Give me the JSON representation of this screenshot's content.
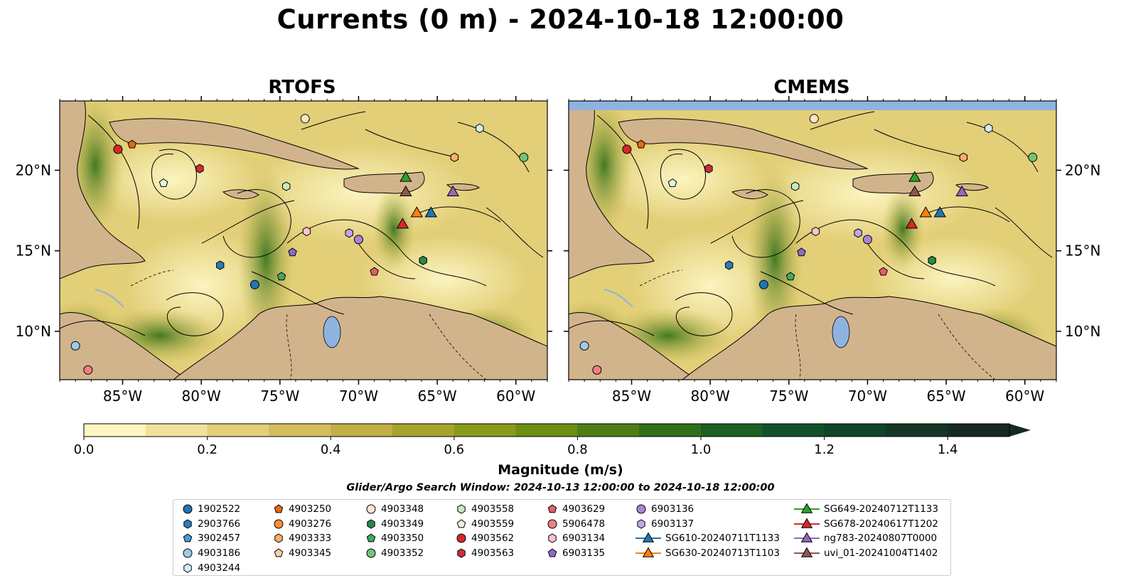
{
  "title": "Currents (0 m) - 2024-10-18 12:00:00",
  "chart_data": {
    "type": "map-streamplot",
    "panels": [
      {
        "title": "RTOFS"
      },
      {
        "title": "CMEMS"
      }
    ],
    "lon_range": [
      -89,
      -58
    ],
    "lat_range": [
      7,
      24.3
    ],
    "x_ticks": [
      "85°W",
      "80°W",
      "75°W",
      "70°W",
      "65°W",
      "60°W"
    ],
    "x_tick_values": [
      -85,
      -80,
      -75,
      -70,
      -65,
      -60
    ],
    "y_ticks": [
      "20°N",
      "15°N",
      "10°N"
    ],
    "y_tick_values": [
      20,
      15,
      10
    ],
    "colorbar": {
      "label": "Magnitude (m/s)",
      "range": [
        0,
        1.5
      ],
      "ticks": [
        "0.0",
        "0.2",
        "0.4",
        "0.6",
        "0.8",
        "1.0",
        "1.2",
        "1.4"
      ],
      "tick_values": [
        0,
        0.2,
        0.4,
        0.6,
        0.8,
        1.0,
        1.2,
        1.4
      ],
      "colors": [
        "#fdf6c3",
        "#f1e29d",
        "#e2cf78",
        "#d3bd5c",
        "#c2b046",
        "#a7a42c",
        "#8a9a1a",
        "#6c8e12",
        "#4d7f14",
        "#2f7019",
        "#196021",
        "#10512a",
        "#0f432a",
        "#133626",
        "#162a1f"
      ]
    },
    "search_window": "Glider/Argo Search Window: 2024-10-13 12:00:00 to 2024-10-18 12:00:00",
    "legend": [
      {
        "name": "1902522",
        "marker": "circle",
        "color": "#1f77b4"
      },
      {
        "name": "2903766",
        "marker": "hexagon",
        "color": "#2b7bba"
      },
      {
        "name": "3902457",
        "marker": "pentagon",
        "color": "#4a9ad6"
      },
      {
        "name": "4903186",
        "marker": "circle",
        "color": "#9ecae9"
      },
      {
        "name": "4903244",
        "marker": "hexagon",
        "color": "#d6ecf8"
      },
      {
        "name": "4903250",
        "marker": "pentagon",
        "color": "#e6690c"
      },
      {
        "name": "4903276",
        "marker": "circle",
        "color": "#fd8d3c"
      },
      {
        "name": "4903333",
        "marker": "hexagon",
        "color": "#fdae6b"
      },
      {
        "name": "4903345",
        "marker": "pentagon",
        "color": "#fdd0a2"
      },
      {
        "name": "4903348",
        "marker": "circle",
        "color": "#fde5c8"
      },
      {
        "name": "4903349",
        "marker": "hexagon",
        "color": "#238b45"
      },
      {
        "name": "4903350",
        "marker": "pentagon",
        "color": "#41ab5d"
      },
      {
        "name": "4903352",
        "marker": "circle",
        "color": "#74c476"
      },
      {
        "name": "4903558",
        "marker": "hexagon",
        "color": "#c7e9c0"
      },
      {
        "name": "4903559",
        "marker": "pentagon",
        "color": "#e5f5e0"
      },
      {
        "name": "4903562",
        "marker": "circle",
        "color": "#d62728"
      },
      {
        "name": "4903563",
        "marker": "hexagon",
        "color": "#cb2f3a"
      },
      {
        "name": "4903629",
        "marker": "pentagon",
        "color": "#e35f6a"
      },
      {
        "name": "5906478",
        "marker": "circle",
        "color": "#f08080"
      },
      {
        "name": "6903134",
        "marker": "hexagon",
        "color": "#fbc4cc"
      },
      {
        "name": "6903135",
        "marker": "pentagon",
        "color": "#8c6bc4"
      },
      {
        "name": "6903136",
        "marker": "circle",
        "color": "#a885d6"
      },
      {
        "name": "6903137",
        "marker": "hexagon",
        "color": "#c3a5e8"
      },
      {
        "name": "SG610-20240711T1133",
        "marker": "triangle",
        "color": "#1f77b4"
      },
      {
        "name": "SG630-20240713T1103",
        "marker": "triangle",
        "color": "#ff7f0e"
      },
      {
        "name": "SG649-20240712T1133",
        "marker": "triangle",
        "color": "#2ca02c"
      },
      {
        "name": "SG678-20240617T1202",
        "marker": "triangle",
        "color": "#d62728"
      },
      {
        "name": "ng783-20240807T0000",
        "marker": "triangle",
        "color": "#9467bd"
      },
      {
        "name": "uvi_01-20241004T1402",
        "marker": "triangle",
        "color": "#8c564b"
      }
    ],
    "markers": [
      {
        "name": "1902522",
        "lon": -76.6,
        "lat": 12.9
      },
      {
        "name": "2903766",
        "lon": -78.8,
        "lat": 14.1
      },
      {
        "name": "4903186",
        "lon": -88.0,
        "lat": 9.1
      },
      {
        "name": "4903244",
        "lon": -62.3,
        "lat": 22.6
      },
      {
        "name": "4903250",
        "lon": -84.4,
        "lat": 21.6
      },
      {
        "name": "4903333",
        "lon": -63.9,
        "lat": 20.8
      },
      {
        "name": "4903348",
        "lon": -73.4,
        "lat": 23.2
      },
      {
        "name": "4903349",
        "lon": -65.9,
        "lat": 14.4
      },
      {
        "name": "4903350",
        "lon": -74.9,
        "lat": 13.4
      },
      {
        "name": "4903352",
        "lon": -59.5,
        "lat": 20.8
      },
      {
        "name": "4903558",
        "lon": -74.6,
        "lat": 19.0
      },
      {
        "name": "4903559",
        "lon": -82.4,
        "lat": 19.2
      },
      {
        "name": "4903562",
        "lon": -85.3,
        "lat": 21.3
      },
      {
        "name": "4903563",
        "lon": -80.1,
        "lat": 20.1
      },
      {
        "name": "4903629",
        "lon": -69.0,
        "lat": 13.7
      },
      {
        "name": "5906478",
        "lon": -87.2,
        "lat": 7.6
      },
      {
        "name": "6903134",
        "lon": -73.3,
        "lat": 16.2
      },
      {
        "name": "6903135",
        "lon": -74.2,
        "lat": 14.9
      },
      {
        "name": "6903136",
        "lon": -70.0,
        "lat": 15.7
      },
      {
        "name": "6903137",
        "lon": -70.6,
        "lat": 16.1
      },
      {
        "name": "SG610-20240711T1133",
        "lon": -65.4,
        "lat": 17.4
      },
      {
        "name": "SG630-20240713T1103",
        "lon": -66.3,
        "lat": 17.4
      },
      {
        "name": "SG649-20240712T1133",
        "lon": -67.0,
        "lat": 19.6
      },
      {
        "name": "SG678-20240617T1202",
        "lon": -67.2,
        "lat": 16.7
      },
      {
        "name": "ng783-20240807T0000",
        "lon": -64.0,
        "lat": 18.7
      },
      {
        "name": "uvi_01-20241004T1402",
        "lon": -67.0,
        "lat": 18.7
      }
    ]
  }
}
